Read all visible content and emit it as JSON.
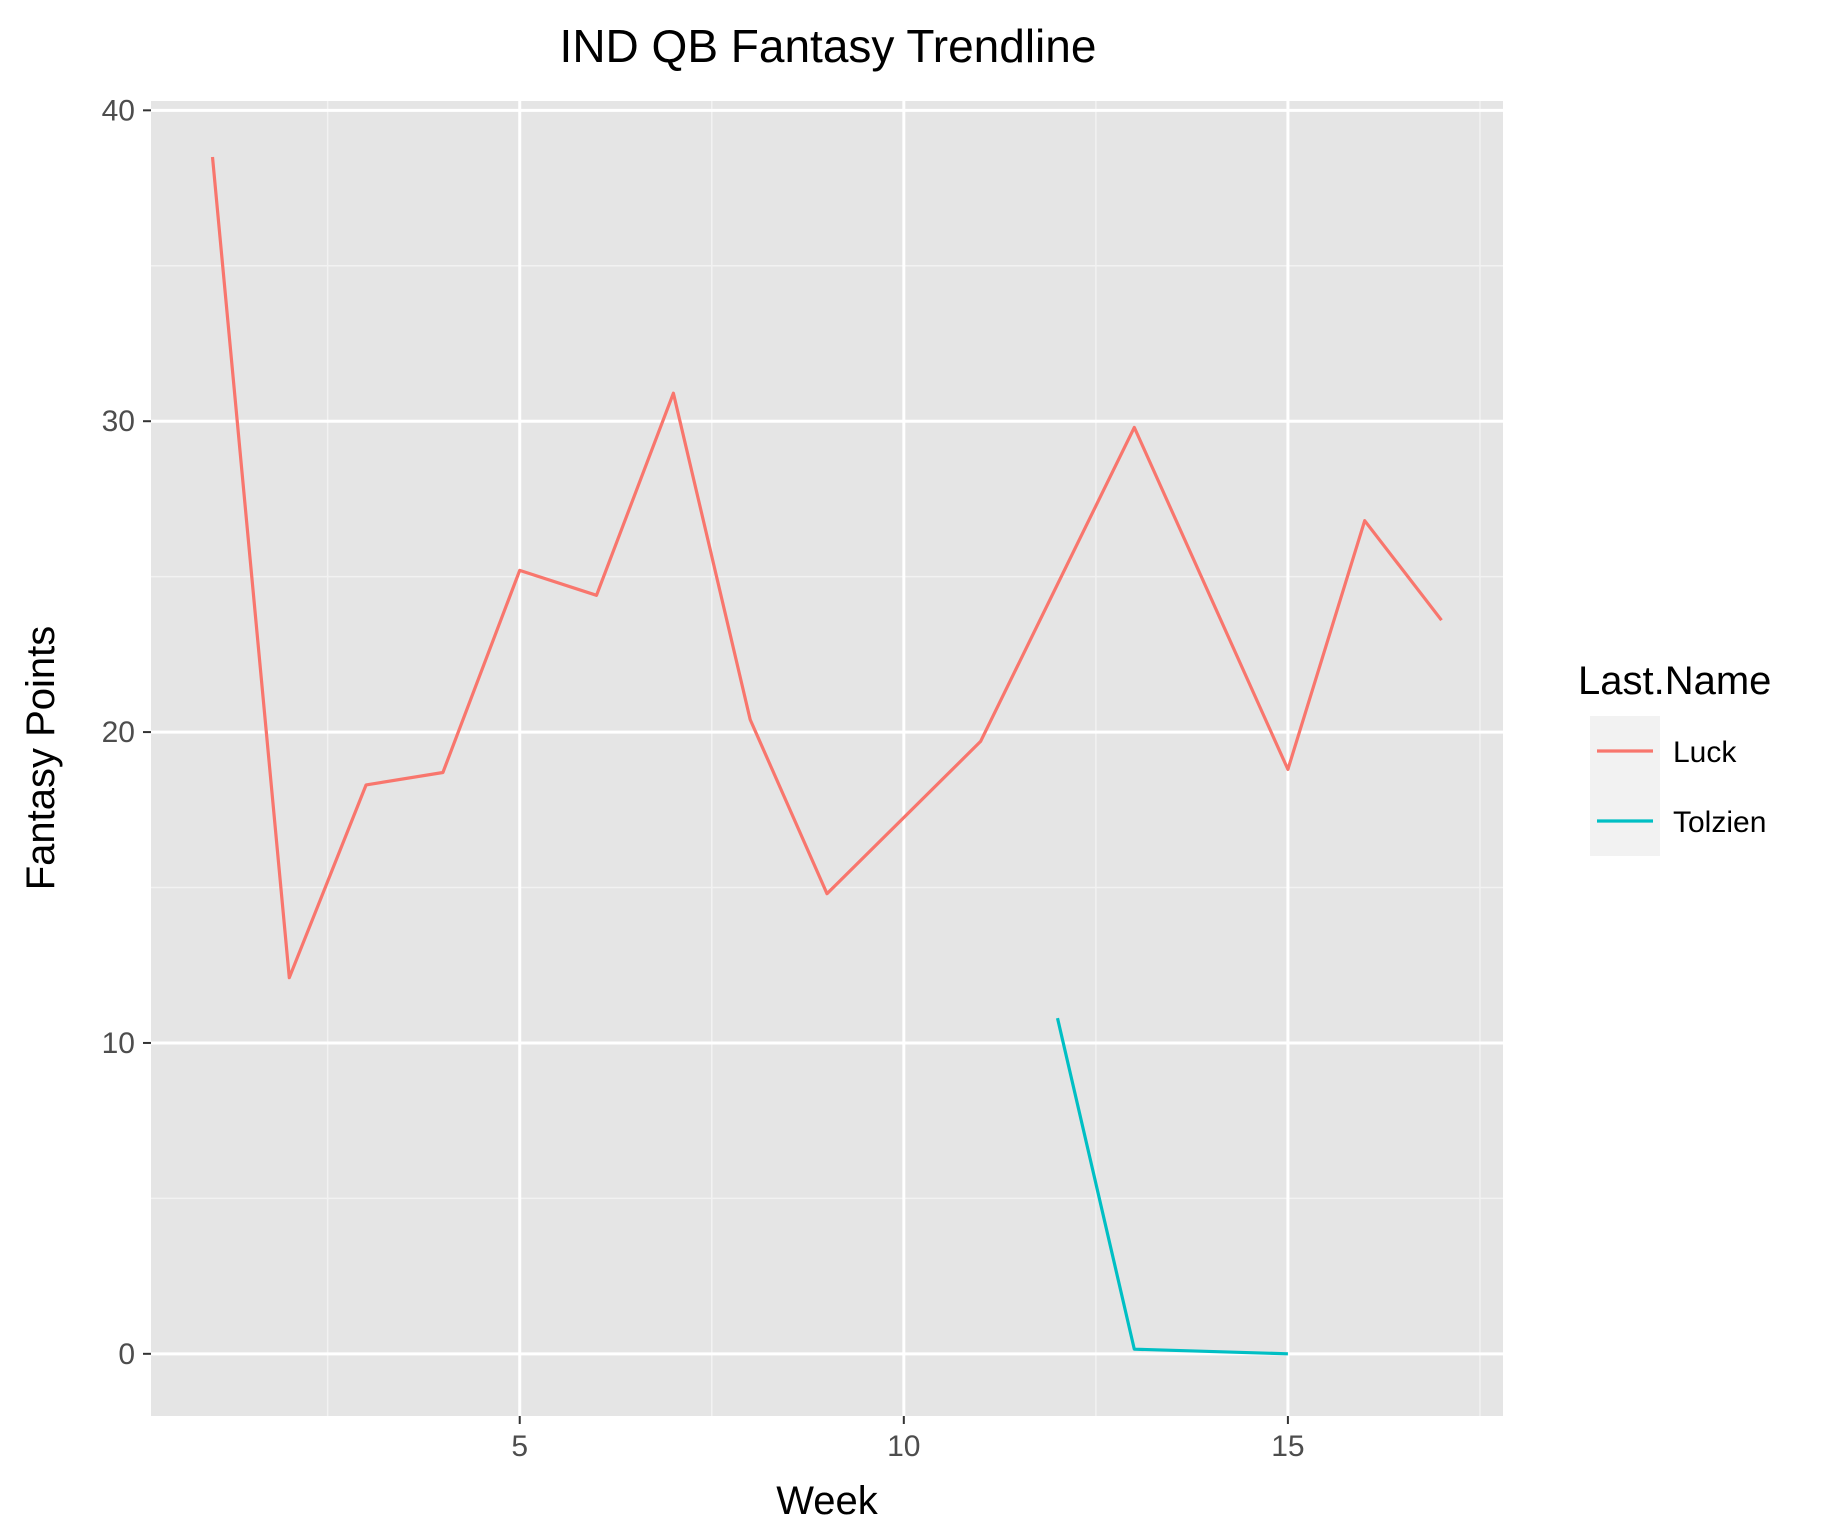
{
  "chart_data": {
    "type": "line",
    "title": "IND QB Fantasy Trendline",
    "xlabel": "Week",
    "ylabel": "Fantasy Points",
    "xlim": [
      0.2,
      17.8
    ],
    "ylim": [
      -2,
      40.3
    ],
    "x_ticks": [
      5,
      10,
      15
    ],
    "y_ticks": [
      0,
      10,
      20,
      30,
      40
    ],
    "x_minor": [
      2.5,
      7.5,
      12.5,
      17.5
    ],
    "y_minor": [
      5,
      15,
      25,
      35
    ],
    "grid": true,
    "legend": {
      "title": "Last.Name",
      "position": "right"
    },
    "series": [
      {
        "name": "Luck",
        "color": "#f8766d",
        "x": [
          1,
          2,
          3,
          4,
          5,
          6,
          7,
          8,
          9,
          11,
          13,
          15,
          16,
          17
        ],
        "y": [
          38.5,
          12.1,
          18.3,
          18.7,
          25.2,
          24.4,
          30.9,
          20.4,
          14.8,
          19.7,
          29.8,
          18.8,
          26.8,
          23.6
        ]
      },
      {
        "name": "Tolzien",
        "color": "#00bfc4",
        "x": [
          12,
          13,
          15
        ],
        "y": [
          10.8,
          0.15,
          0.0
        ]
      }
    ]
  }
}
